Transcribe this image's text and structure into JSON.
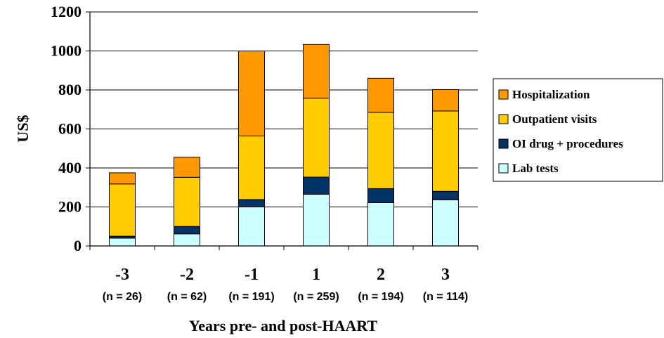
{
  "chart_data": {
    "type": "bar",
    "stacked": true,
    "title": "",
    "xlabel": "Years pre- and post-HAART",
    "ylabel": "US$",
    "ylim": [
      0,
      1200
    ],
    "yticks": [
      0,
      200,
      400,
      600,
      800,
      1000,
      1200
    ],
    "grid": true,
    "legend_position": "right",
    "categories": [
      "-3",
      "-2",
      "-1",
      "1",
      "2",
      "3"
    ],
    "category_sublabels": [
      "(n = 26)",
      "(n = 62)",
      "(n = 191)",
      "(n = 259)",
      "(n = 194)",
      "(n = 114)"
    ],
    "series": [
      {
        "name": "Lab tests",
        "color": "#ccffff",
        "values": [
          40,
          62,
          200,
          265,
          222,
          236
        ]
      },
      {
        "name": "OI drug + procedures",
        "color": "#003366",
        "values": [
          10,
          38,
          38,
          88,
          72,
          44
        ]
      },
      {
        "name": "Outpatient visits",
        "color": "#ffcc00",
        "values": [
          268,
          252,
          326,
          405,
          391,
          412
        ]
      },
      {
        "name": "Hospitalization",
        "color": "#ff9900",
        "values": [
          57,
          103,
          436,
          275,
          175,
          110
        ]
      }
    ],
    "legend_order": [
      "Hospitalization",
      "Outpatient visits",
      "OI drug + procedures",
      "Lab tests"
    ]
  }
}
